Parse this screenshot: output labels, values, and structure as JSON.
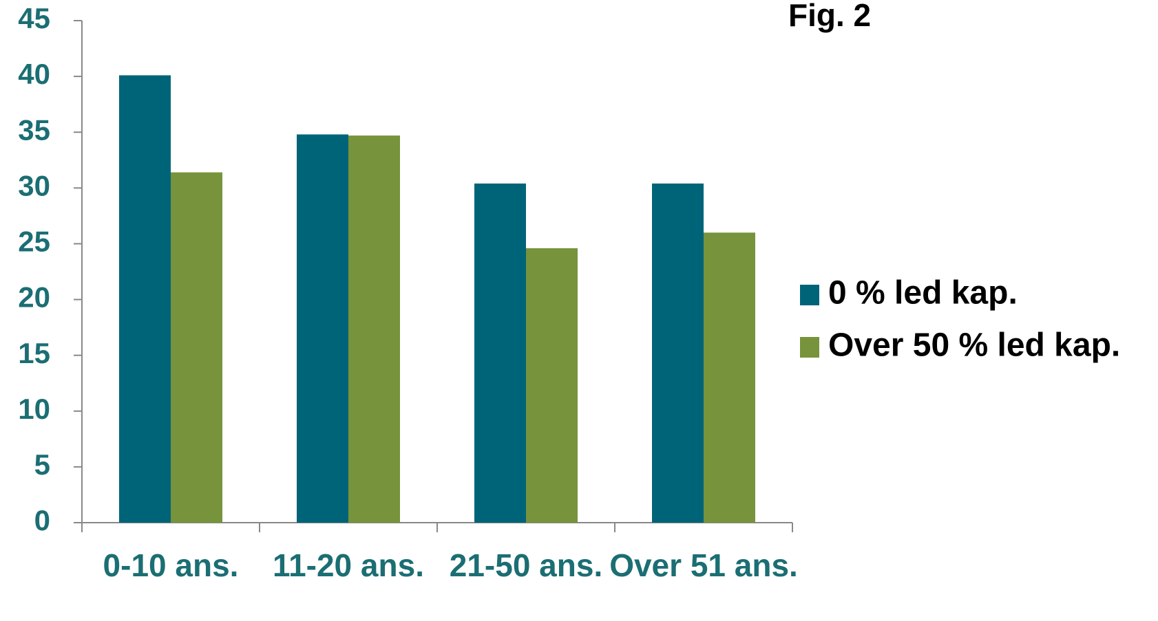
{
  "chart_data": {
    "type": "bar",
    "title": "Fig. 2",
    "categories": [
      "0-10 ans.",
      "11-20 ans.",
      "21-50 ans.",
      "Over 51 ans."
    ],
    "series": [
      {
        "name": "0 % led kap.",
        "color": "#006479",
        "values": [
          40.1,
          34.8,
          30.4,
          30.4
        ]
      },
      {
        "name": "Over 50 % led kap.",
        "color": "#77933c",
        "values": [
          31.4,
          34.7,
          24.6,
          26.0
        ]
      }
    ],
    "ylim": [
      0,
      45
    ],
    "yticks": [
      0,
      5,
      10,
      15,
      20,
      25,
      30,
      35,
      40,
      45
    ],
    "grid": false,
    "legend": "right"
  }
}
